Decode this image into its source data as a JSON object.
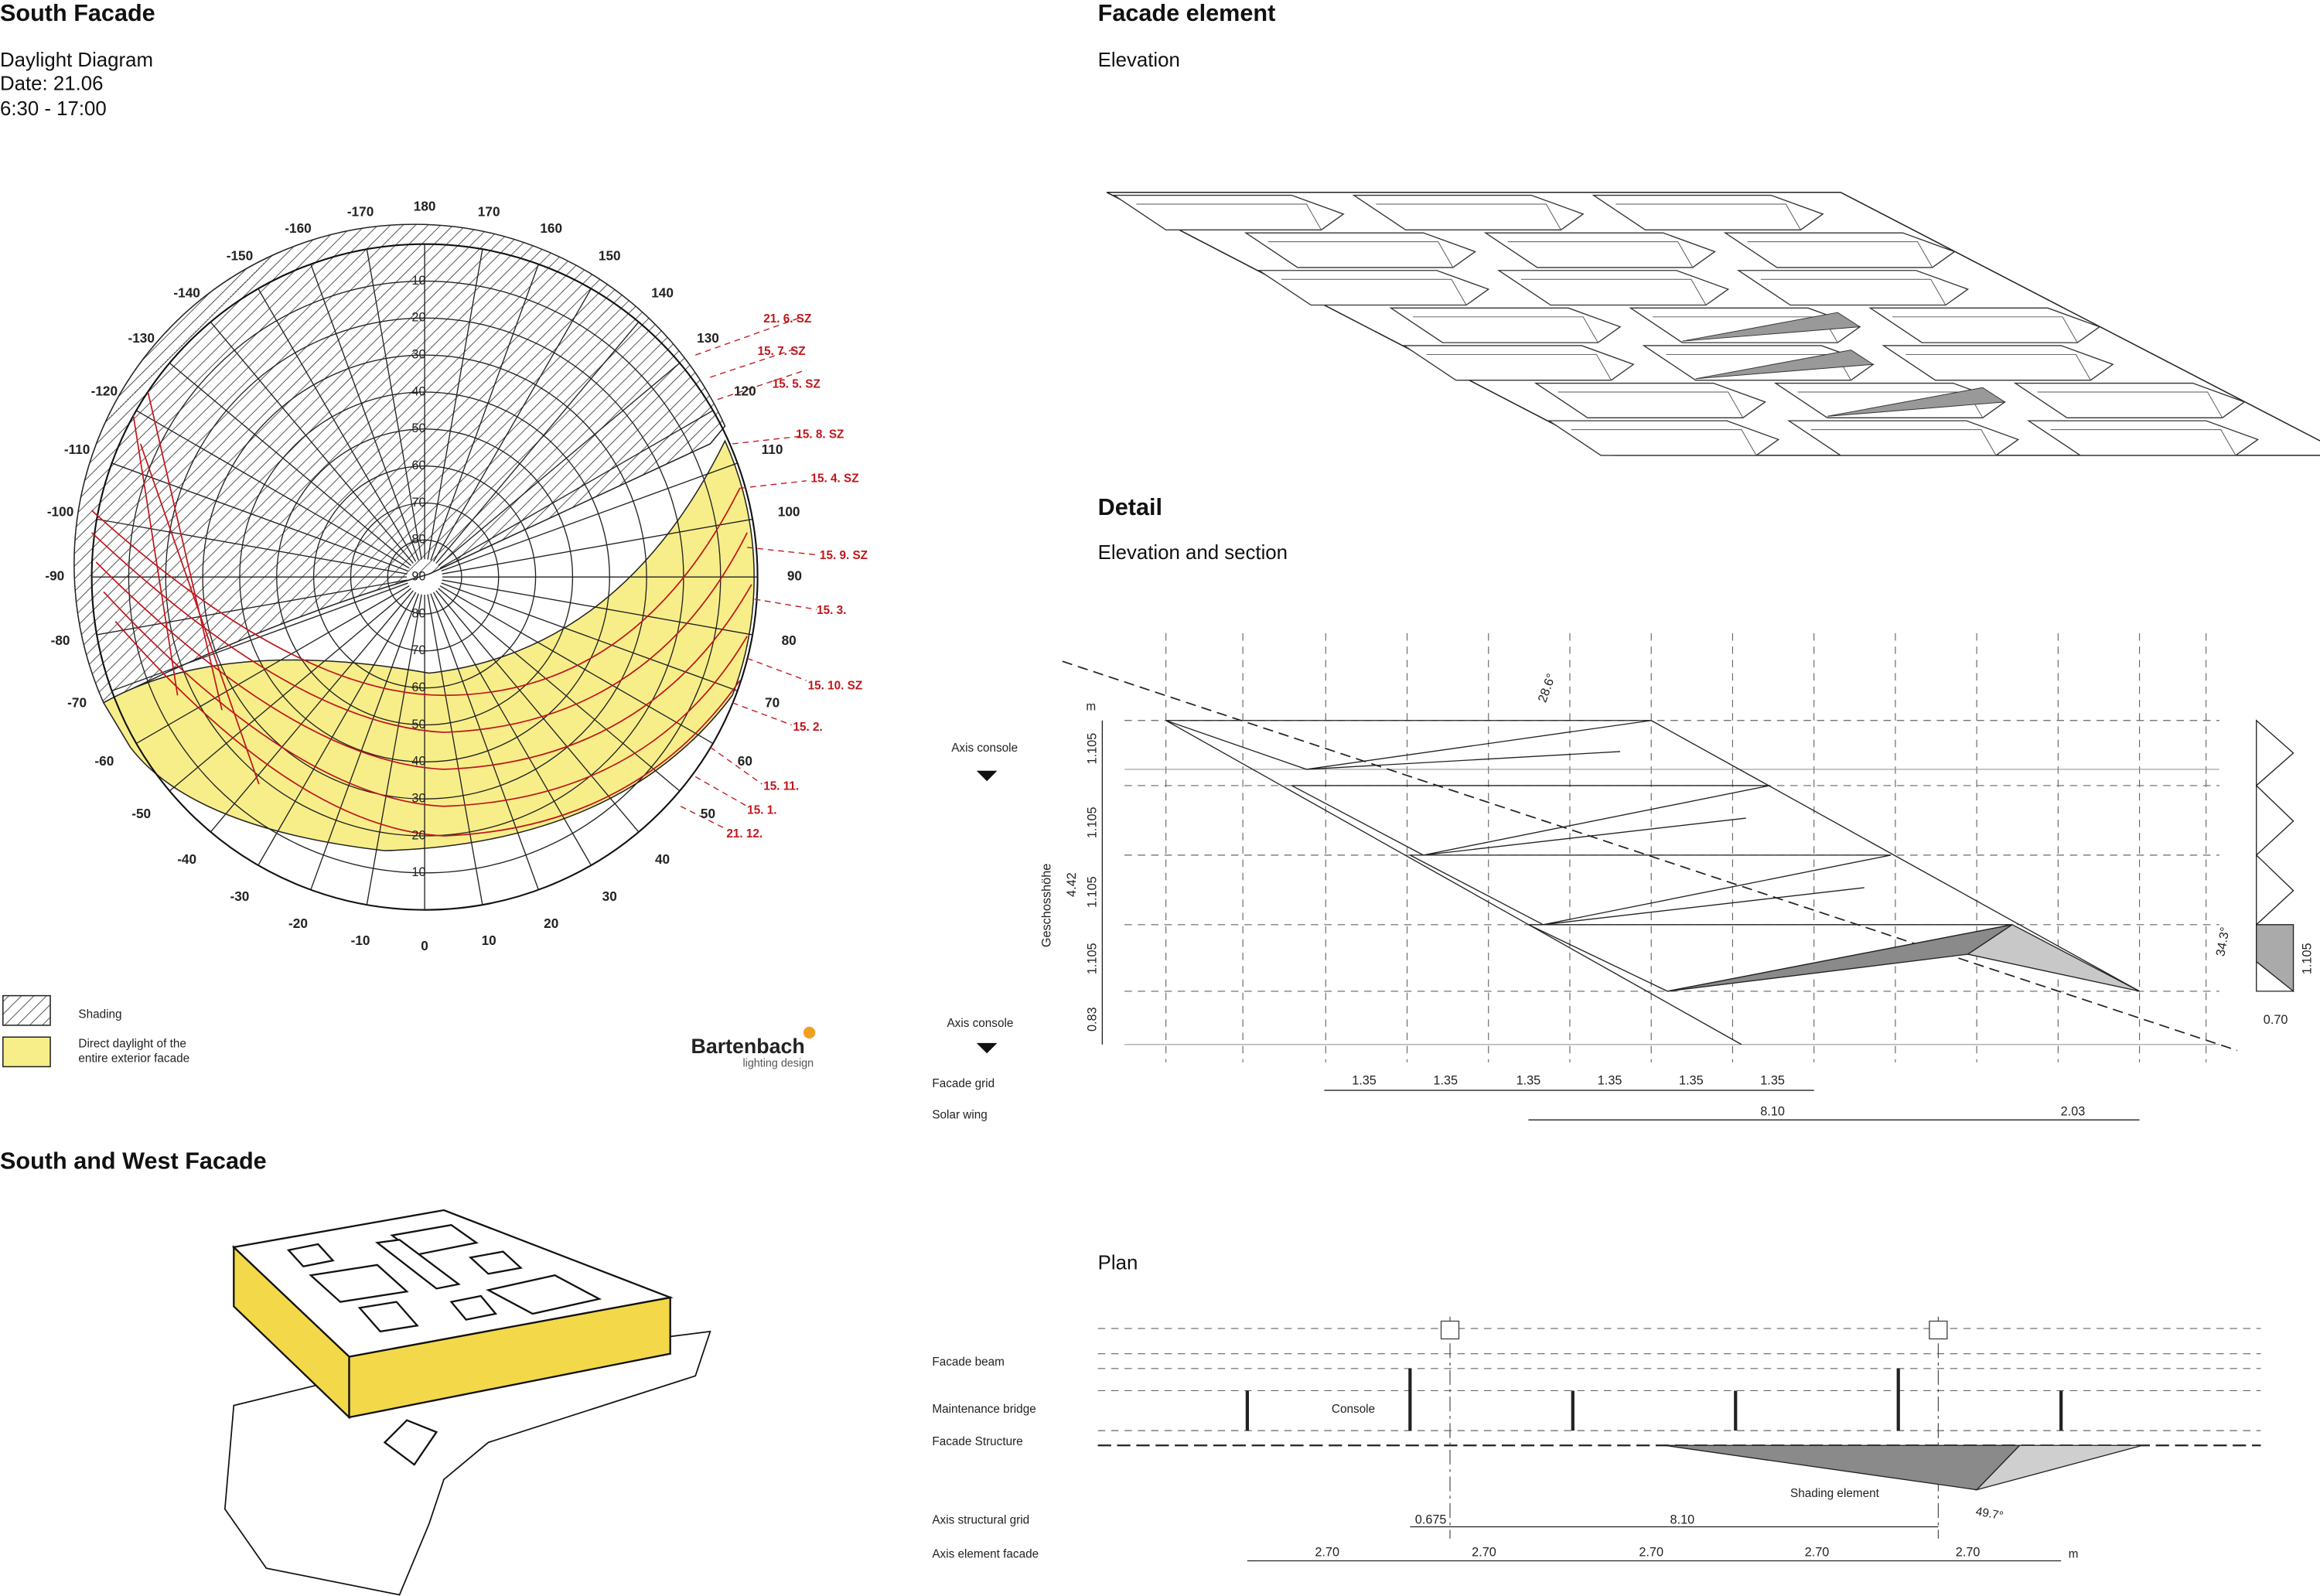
{
  "south_facade": {
    "title": "South Facade",
    "lines": [
      "Daylight Diagram",
      "Date: 21.06",
      "6:30 - 17:00"
    ],
    "azimuth_labels": [
      -170,
      -160,
      -150,
      -140,
      -130,
      -120,
      -110,
      -100,
      -90,
      -80,
      -70,
      -60,
      -50,
      -40,
      -30,
      -20,
      -10,
      0,
      10,
      20,
      30,
      40,
      50,
      60,
      70,
      80,
      90,
      100,
      110,
      120,
      130,
      140,
      150,
      160,
      170,
      180
    ],
    "altitude_labels": [
      10,
      20,
      30,
      40,
      50,
      60,
      70,
      80,
      90
    ],
    "altitude_labels_lower": [
      80,
      70,
      60,
      50,
      40,
      30,
      20,
      10
    ],
    "sun_path_labels": [
      "21. 6. SZ",
      "15. 7. SZ",
      "15. 5. SZ",
      "15. 8. SZ",
      "15. 4. SZ",
      "15. 9. SZ",
      "15. 3.",
      "15. 10. SZ",
      "15. 2.",
      "15. 11.",
      "15. 1.",
      "21. 12."
    ],
    "legend": [
      "Shading",
      "Direct daylight of the",
      "entire exterior facade"
    ],
    "logo": "Bartenbach",
    "logo_sub": "lighting design"
  },
  "south_west_facade": {
    "title": "South and West Facade"
  },
  "facade_element": {
    "title": "Facade element",
    "subtitle": "Elevation"
  },
  "detail": {
    "title": "Detail",
    "subtitle": "Elevation and section",
    "axis_console": [
      "Axis console",
      "Axis console"
    ],
    "unit": "m",
    "angle": "28.6°",
    "heights": [
      "1.105",
      "1.105",
      "1.105",
      "1.105",
      "0.83"
    ],
    "total_height": "4.42",
    "storey_label": "Geschosshöhe",
    "profile_angle": "34.3°",
    "profile_height": "1.105",
    "profile_depth": "0.70",
    "facade_grid_label": "Facade grid",
    "facade_grid": [
      "1.35",
      "1.35",
      "1.35",
      "1.35",
      "1.35",
      "1.35"
    ],
    "solar_wing_label": "Solar wing",
    "solar_wing": [
      "8.10",
      "2.03"
    ]
  },
  "plan": {
    "title": "Plan",
    "labels": [
      "Facade beam",
      "Maintenance bridge",
      "Facade Structure",
      "Axis structural grid",
      "Axis element facade"
    ],
    "console": "Console",
    "shading_element": "Shading element",
    "angle": "49.7°",
    "structural_grid": [
      "0.675",
      "8.10"
    ],
    "element_facade": [
      "2.70",
      "2.70",
      "2.70",
      "2.70",
      "2.70"
    ],
    "unit": "m"
  }
}
